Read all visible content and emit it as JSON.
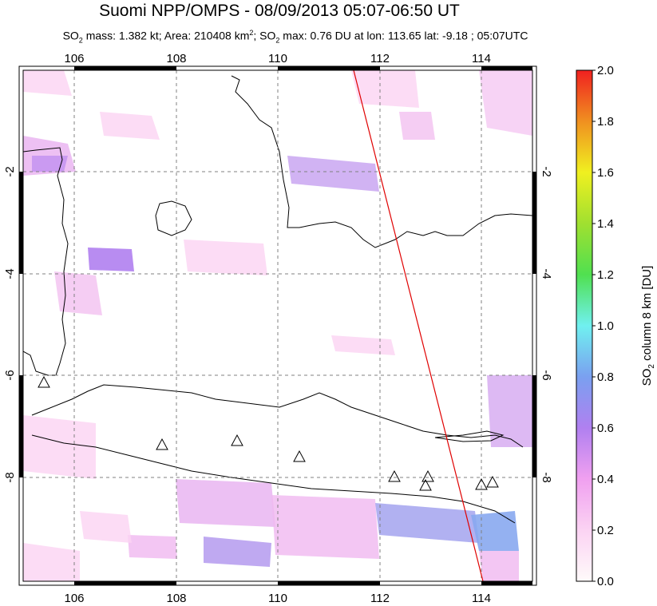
{
  "title": "Suomi NPP/OMPS - 08/09/2013 05:07-06:50 UT",
  "subtitle": {
    "p1": "SO",
    "p1sub": "2",
    "p2": " mass: 1.382 kt; Area: 210408 km",
    "p2sup": "2",
    "p3": "; SO",
    "p3sub": "2",
    "p4": " max: 0.76 DU at lon: 113.65 lat: -9.18 ; 05:07UTC"
  },
  "map": {
    "lon_ticks": [
      "106",
      "108",
      "110",
      "112",
      "114"
    ],
    "lat_ticks": [
      "-2",
      "-4",
      "-6",
      "-8"
    ],
    "lon_range": [
      105,
      115
    ],
    "lat_range": [
      -10.2,
      -0.1
    ],
    "orbit_track": {
      "start": [
        111.5,
        -0.1
      ],
      "end": [
        114.05,
        -10.2
      ],
      "color": "#e00000"
    },
    "volcano_marker": "triangle-icon"
  },
  "colorbar": {
    "label": "SO",
    "label_sub": "2",
    "label_rest": " column 8 km [DU]",
    "ticks": [
      "0.0",
      "0.2",
      "0.4",
      "0.6",
      "0.8",
      "1.0",
      "1.2",
      "1.4",
      "1.6",
      "1.8",
      "2.0"
    ],
    "colors": [
      "#fffafa",
      "#fbd3f3",
      "#f0a0f0",
      "#b080f0",
      "#7aa0f0",
      "#70f0f0",
      "#50e050",
      "#a0e030",
      "#f0f020",
      "#f09020",
      "#f02020"
    ]
  }
}
